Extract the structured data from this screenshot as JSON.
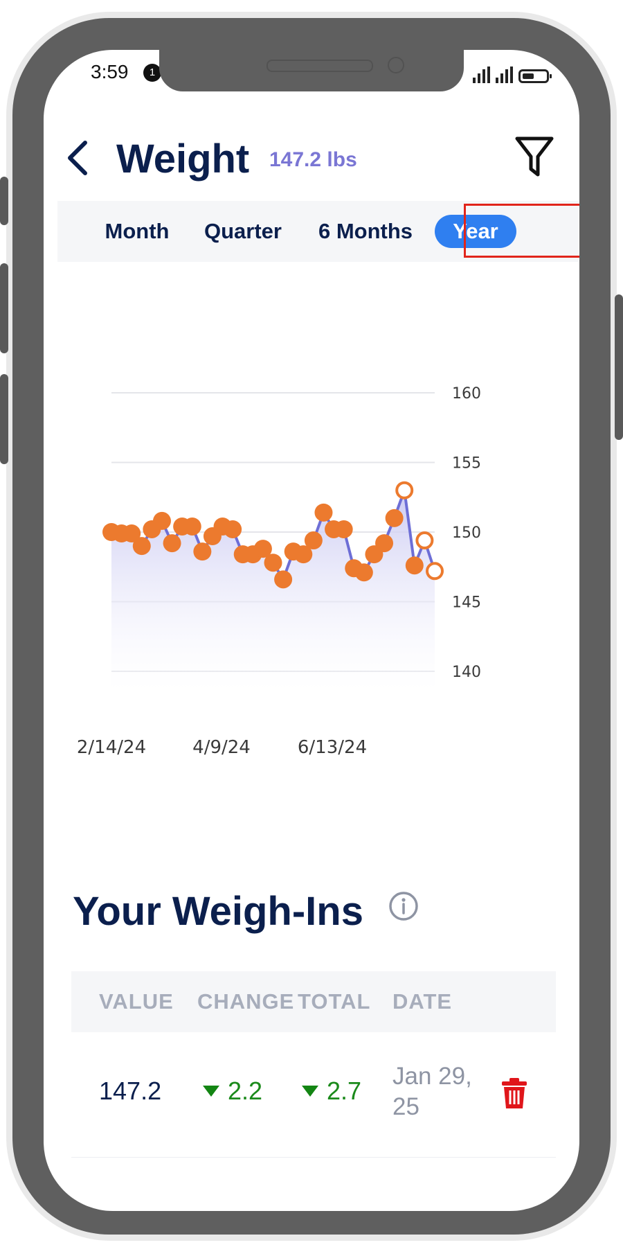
{
  "status_bar": {
    "time": "3:59",
    "notification_count": "1"
  },
  "header": {
    "title": "Weight",
    "current_value": "147.2 lbs"
  },
  "tabs": [
    {
      "label": "Month",
      "active": false
    },
    {
      "label": "Quarter",
      "active": false
    },
    {
      "label": "6 Months",
      "active": false
    },
    {
      "label": "Year",
      "active": true
    }
  ],
  "colors": {
    "title": "#0b1f4d",
    "accent_purple": "#7a76d4",
    "tab_active": "#2f7ff0",
    "point": "#ec7a2e",
    "line": "#6d6ed6",
    "positive_change": "#138513",
    "delete": "#e0161b",
    "highlight_box": "#e1251b"
  },
  "chart_data": {
    "type": "line",
    "ylim": [
      140,
      160
    ],
    "y_ticks": [
      160,
      155,
      150,
      145,
      140
    ],
    "x_tick_labels": [
      "2/14/24",
      "4/9/24",
      "6/13/24"
    ],
    "grid": true,
    "area_fill": true,
    "series": [
      {
        "values": [
          150.0,
          149.9,
          149.9,
          149.0,
          150.2,
          150.8,
          149.2,
          150.4,
          150.4,
          148.6,
          149.7,
          150.4,
          150.2,
          148.4,
          148.4,
          148.8,
          147.8,
          146.6,
          148.6,
          148.4,
          149.4,
          151.4,
          150.2,
          150.2,
          147.4,
          147.1,
          148.4,
          149.2,
          151.0,
          153.0,
          147.6,
          149.4,
          147.2
        ],
        "hollow_indices": [
          29,
          31,
          32
        ]
      }
    ]
  },
  "weigh_ins": {
    "title": "Your Weigh-Ins",
    "columns": [
      "VALUE",
      "CHANGE",
      "TOTAL",
      "DATE"
    ],
    "rows": [
      {
        "value": "147.2",
        "change": "2.2",
        "total": "2.7",
        "date": "Jan 29, 25"
      }
    ]
  }
}
